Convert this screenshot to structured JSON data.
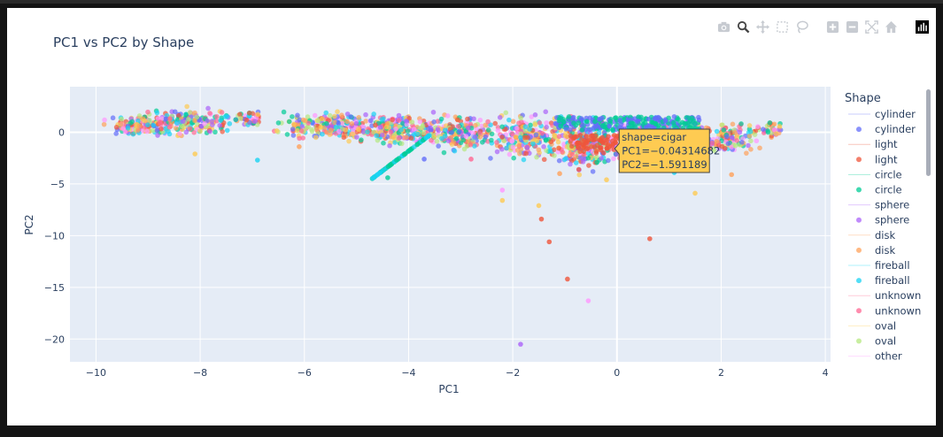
{
  "toolbar": {
    "icons": [
      "camera-icon",
      "zoom-icon",
      "pan-icon",
      "box-select-icon",
      "lasso-icon",
      "zoom-in-icon",
      "zoom-out-icon",
      "autoscale-icon",
      "reset-axes-icon",
      "plotly-logo-icon"
    ]
  },
  "chart_data": {
    "type": "scatter",
    "title": "PC1 vs PC2 by Shape",
    "xlabel": "PC1",
    "ylabel": "PC2",
    "xlim": [
      -10.5,
      4.1
    ],
    "ylim": [
      -22.2,
      4.4
    ],
    "x_ticks": [
      -10,
      -8,
      -6,
      -4,
      -2,
      0,
      2,
      4
    ],
    "x_tick_labels": [
      "−10",
      "−8",
      "−6",
      "−4",
      "−2",
      "0",
      "2",
      "4"
    ],
    "y_ticks": [
      0,
      -5,
      -10,
      -15,
      -20
    ],
    "y_tick_labels": [
      "0",
      "−5",
      "−10",
      "−15",
      "−20"
    ],
    "grid": true,
    "background": "#e5ecf6",
    "legend": {
      "title": "Shape",
      "placement": "right",
      "entries": [
        {
          "label": "cylinder",
          "kind": "line",
          "color": "#636efa"
        },
        {
          "label": "cylinder",
          "kind": "marker",
          "color": "#636efa"
        },
        {
          "label": "light",
          "kind": "line",
          "color": "#EF553B"
        },
        {
          "label": "light",
          "kind": "marker",
          "color": "#EF553B"
        },
        {
          "label": "circle",
          "kind": "line",
          "color": "#00cc96"
        },
        {
          "label": "circle",
          "kind": "marker",
          "color": "#00cc96"
        },
        {
          "label": "sphere",
          "kind": "line",
          "color": "#ab63fa"
        },
        {
          "label": "sphere",
          "kind": "marker",
          "color": "#ab63fa"
        },
        {
          "label": "disk",
          "kind": "line",
          "color": "#FFA15A"
        },
        {
          "label": "disk",
          "kind": "marker",
          "color": "#FFA15A"
        },
        {
          "label": "fireball",
          "kind": "line",
          "color": "#19d3f3"
        },
        {
          "label": "fireball",
          "kind": "marker",
          "color": "#19d3f3"
        },
        {
          "label": "unknown",
          "kind": "line",
          "color": "#FF6692"
        },
        {
          "label": "unknown",
          "kind": "marker",
          "color": "#FF6692"
        },
        {
          "label": "oval",
          "kind": "line",
          "color": "#FECB52"
        },
        {
          "label": "oval",
          "kind": "marker",
          "color": "#B6E880"
        },
        {
          "label": "other",
          "kind": "line",
          "color": "#FF97FF"
        }
      ]
    },
    "series_colors": [
      "#636efa",
      "#EF553B",
      "#00cc96",
      "#ab63fa",
      "#FFA15A",
      "#19d3f3",
      "#FF6692",
      "#B6E880",
      "#FF97FF",
      "#FECB52"
    ],
    "outliers": [
      {
        "x": -2.2,
        "y": -5.6,
        "color": "#FF97FF"
      },
      {
        "x": -2.2,
        "y": -6.6,
        "color": "#FECB52"
      },
      {
        "x": -1.5,
        "y": -7.1,
        "color": "#FECB52"
      },
      {
        "x": -1.45,
        "y": -8.4,
        "color": "#EF553B"
      },
      {
        "x": -1.3,
        "y": -10.6,
        "color": "#EF553B"
      },
      {
        "x": -0.95,
        "y": -14.2,
        "color": "#EF553B"
      },
      {
        "x": -0.55,
        "y": -16.3,
        "color": "#FF97FF"
      },
      {
        "x": 0.63,
        "y": -10.3,
        "color": "#EF553B"
      },
      {
        "x": 1.5,
        "y": -5.9,
        "color": "#FECB52"
      },
      {
        "x": -1.85,
        "y": -20.5,
        "color": "#ab63fa"
      },
      {
        "x": -3.7,
        "y": -2.6,
        "color": "#636efa"
      },
      {
        "x": -2.8,
        "y": -2.6,
        "color": "#FF6692"
      },
      {
        "x": -4.4,
        "y": -4.4,
        "color": "#00cc96"
      },
      {
        "x": -6.9,
        "y": -2.7,
        "color": "#19d3f3"
      },
      {
        "x": -8.1,
        "y": -2.1,
        "color": "#FECB52"
      },
      {
        "x": -6.1,
        "y": -1.4,
        "color": "#FFA15A"
      },
      {
        "x": -1.1,
        "y": -4.0,
        "color": "#FFA15A"
      },
      {
        "x": -0.2,
        "y": -4.6,
        "color": "#FECB52"
      },
      {
        "x": 1.1,
        "y": -3.9,
        "color": "#19d3f3"
      },
      {
        "x": 2.2,
        "y": -4.1,
        "color": "#FFA15A"
      }
    ],
    "hover": {
      "lines": [
        "shape=cigar",
        "PC1=−0.04314682",
        "PC2=−1.591189"
      ],
      "x": -0.04314682,
      "y": -1.591189,
      "color": "#FECB52"
    }
  }
}
